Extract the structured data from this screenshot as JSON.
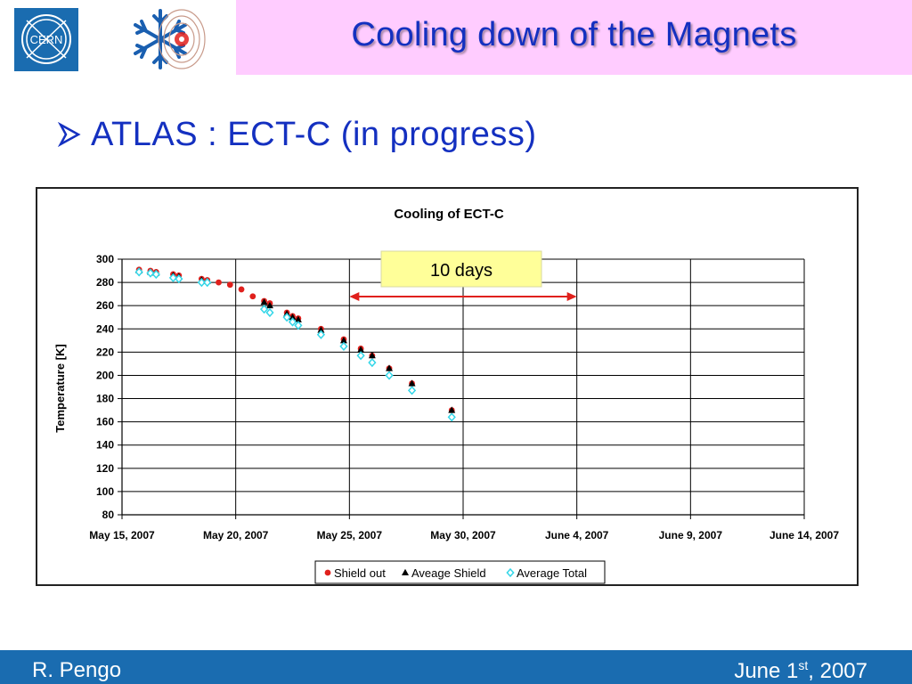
{
  "slide": {
    "title": "Cooling down of the Magnets",
    "bullet": "ATLAS : ECT-C (in progress)",
    "author": "R. Pengo",
    "date_prefix": "June 1",
    "date_sup": "st",
    "date_suffix": ", 2007",
    "logo_text": "CERN"
  },
  "colors": {
    "title": "#1430c0",
    "header_band": "#ffccff",
    "footer": "#1a6cb0",
    "shield_out": "#e0201c",
    "average_shield": "#000000",
    "average_total": "#33d6e8",
    "annotation_box": "#ffff99",
    "annotation_arrow": "#e0201c"
  },
  "chart_data": {
    "type": "scatter",
    "title": "Cooling of ECT-C",
    "xlabel": "",
    "ylabel": "Temperature [K]",
    "ylim": [
      80,
      300
    ],
    "yticks": [
      80,
      100,
      120,
      140,
      160,
      180,
      200,
      220,
      240,
      260,
      280,
      300
    ],
    "xlim": [
      "2007-05-15",
      "2007-06-14"
    ],
    "xticks": [
      "May 15, 2007",
      "May 20, 2007",
      "May 25, 2007",
      "May 30, 2007",
      "June 4, 2007",
      "June 9, 2007",
      "June 14, 2007"
    ],
    "grid": "vertical lines at x ticks",
    "legend_position": "bottom",
    "annotation": {
      "text": "10 days",
      "from": "2007-05-25",
      "to": "2007-06-04"
    },
    "series": [
      {
        "name": "Shield out",
        "marker": "circle",
        "x": [
          "2007-05-15 18:00",
          "2007-05-16 06:00",
          "2007-05-16 12:00",
          "2007-05-17 06:00",
          "2007-05-17 12:00",
          "2007-05-18 12:00",
          "2007-05-18 18:00",
          "2007-05-19 06:00",
          "2007-05-19 18:00",
          "2007-05-20 06:00",
          "2007-05-20 18:00",
          "2007-05-21 06:00",
          "2007-05-21 12:00",
          "2007-05-22 06:00",
          "2007-05-22 12:00",
          "2007-05-22 18:00",
          "2007-05-23 18:00",
          "2007-05-24 18:00",
          "2007-05-25 12:00",
          "2007-05-26 00:00",
          "2007-05-26 18:00",
          "2007-05-27 18:00",
          "2007-05-29 12:00"
        ],
        "y": [
          291,
          290,
          289,
          287,
          286,
          283,
          282,
          280,
          278,
          274,
          268,
          264,
          262,
          254,
          251,
          249,
          240,
          231,
          223,
          217,
          206,
          193,
          170
        ]
      },
      {
        "name": "Aveage Shield",
        "marker": "triangle",
        "x": [
          "2007-05-15 18:00",
          "2007-05-16 06:00",
          "2007-05-16 12:00",
          "2007-05-17 06:00",
          "2007-05-17 12:00",
          "2007-05-18 12:00",
          "2007-05-18 18:00",
          "2007-05-21 06:00",
          "2007-05-21 12:00",
          "2007-05-22 06:00",
          "2007-05-22 12:00",
          "2007-05-22 18:00",
          "2007-05-23 18:00",
          "2007-05-24 18:00",
          "2007-05-25 12:00",
          "2007-05-26 00:00",
          "2007-05-26 18:00",
          "2007-05-27 18:00",
          "2007-05-29 12:00"
        ],
        "y": [
          290,
          289,
          288,
          286,
          285,
          282,
          281,
          263,
          260,
          253,
          250,
          248,
          239,
          230,
          222,
          217,
          206,
          193,
          170
        ]
      },
      {
        "name": "Average Total",
        "marker": "diamond",
        "x": [
          "2007-05-15 18:00",
          "2007-05-16 06:00",
          "2007-05-16 12:00",
          "2007-05-17 06:00",
          "2007-05-17 12:00",
          "2007-05-18 12:00",
          "2007-05-18 18:00",
          "2007-05-21 06:00",
          "2007-05-21 12:00",
          "2007-05-22 06:00",
          "2007-05-22 12:00",
          "2007-05-22 18:00",
          "2007-05-23 18:00",
          "2007-05-24 18:00",
          "2007-05-25 12:00",
          "2007-05-26 00:00",
          "2007-05-26 18:00",
          "2007-05-27 18:00",
          "2007-05-29 12:00"
        ],
        "y": [
          289,
          288,
          287,
          284,
          283,
          280,
          280,
          257,
          254,
          250,
          246,
          243,
          235,
          225,
          217,
          211,
          200,
          187,
          164
        ]
      }
    ]
  }
}
